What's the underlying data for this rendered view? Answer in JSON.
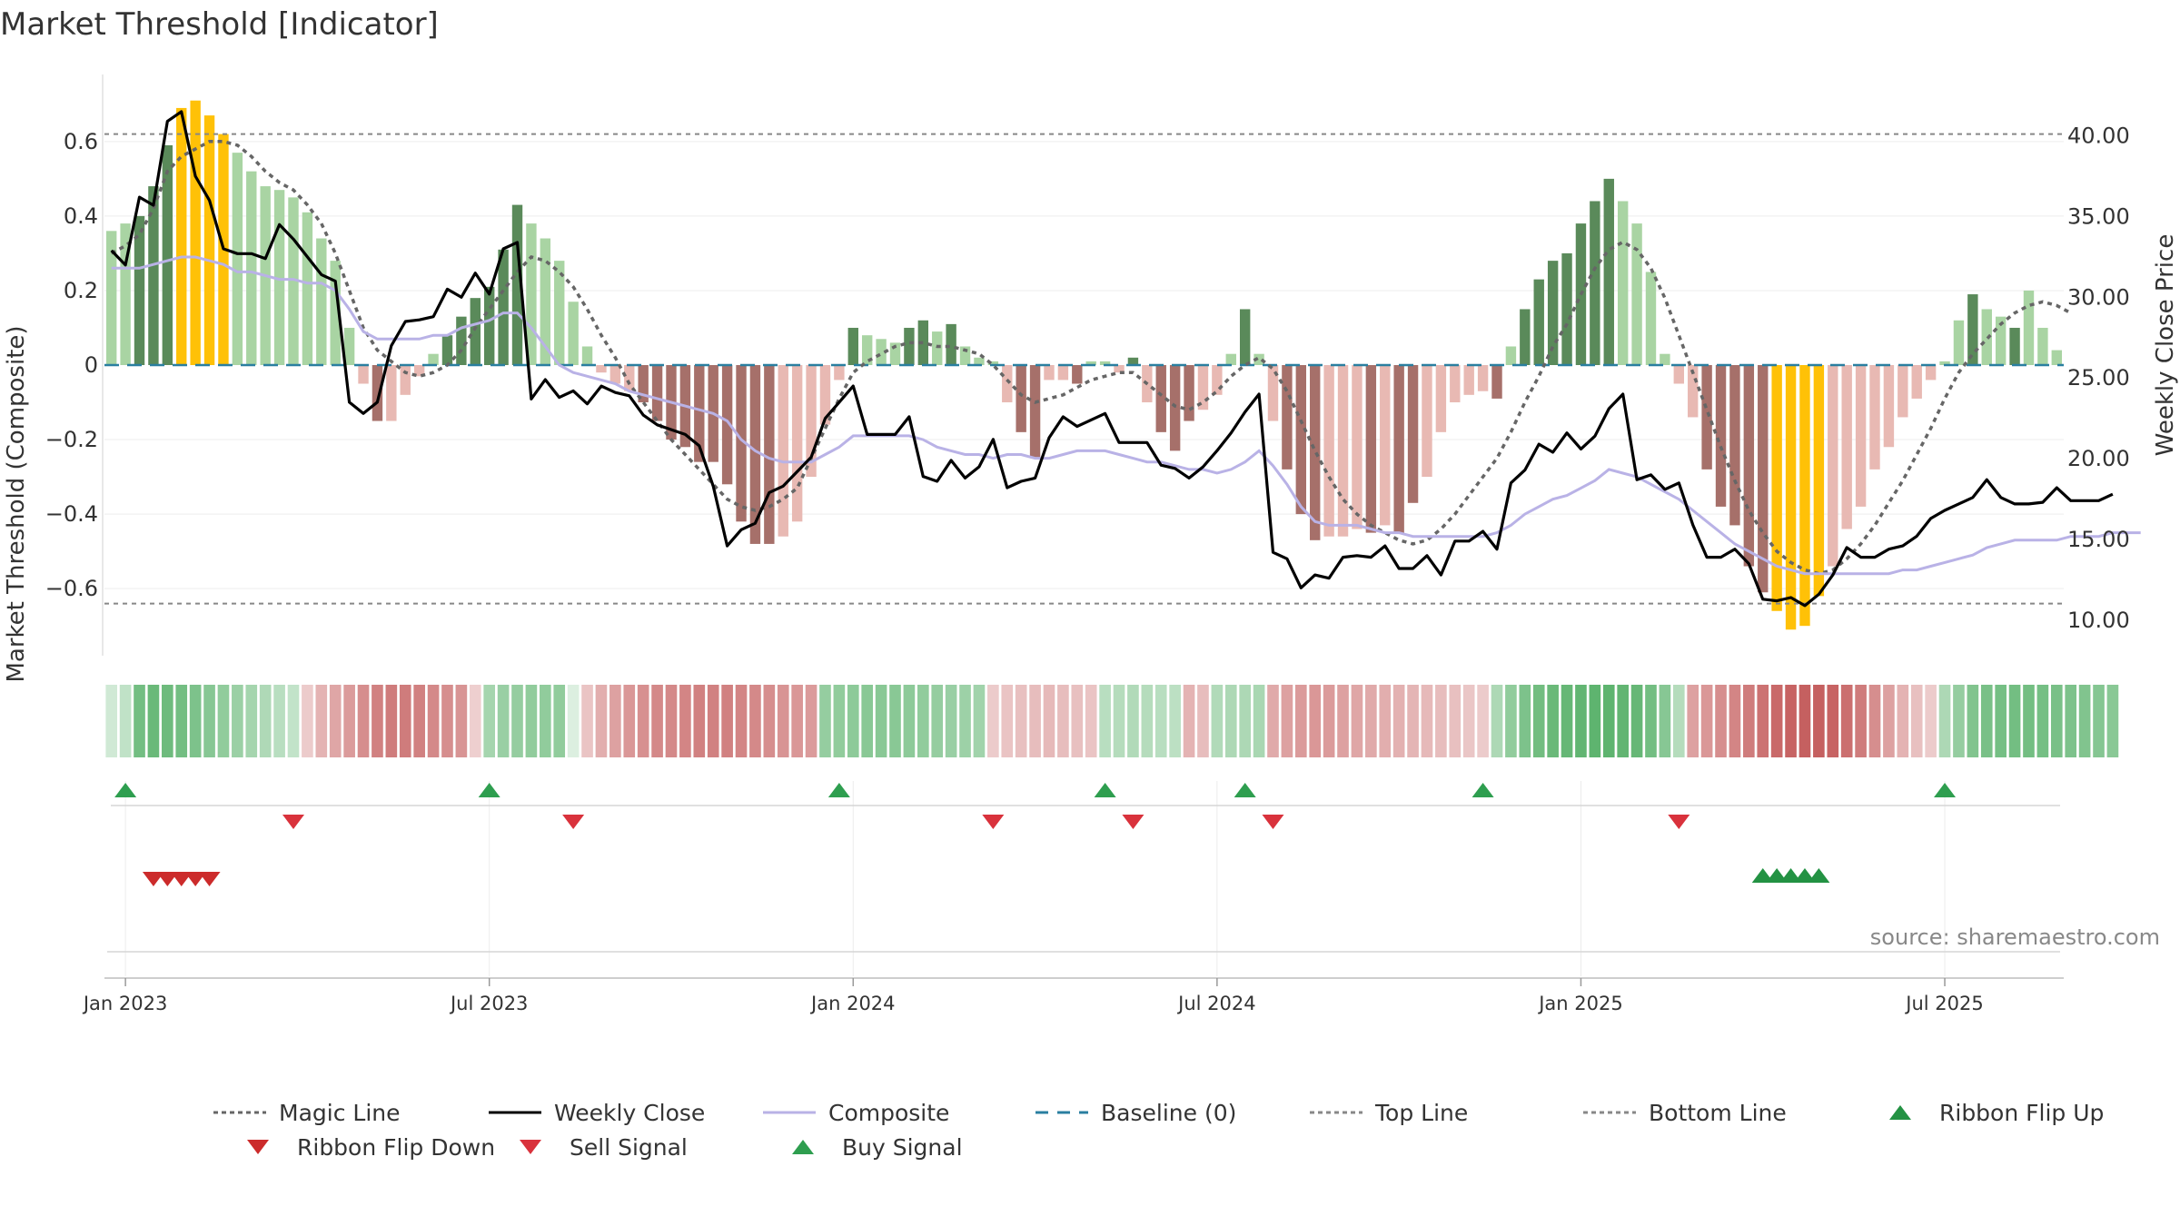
{
  "page": {
    "title": "Market Threshold [Indicator]",
    "source": "source: sharemaestro.com"
  },
  "colors": {
    "bar_pos_strong": "#5a8a5a",
    "bar_pos_weak": "#a9d4a3",
    "bar_neg_strong": "#a6706a",
    "bar_neg_weak": "#e8b9b3",
    "bar_extreme": "#ffc107",
    "weekly_close": "#000000",
    "composite": "#b9b2e6",
    "magic_line": "#666666",
    "baseline": "#2a7fa0",
    "threshold_lines": "#888888",
    "buy": "#2e9e4f",
    "sell": "#d9323c",
    "ribbon_up": "#239243",
    "ribbon_down": "#cc2b2b"
  },
  "chart_data": {
    "type": "bar",
    "xlabel": "",
    "ylabel": "Market Threshold (Composite)",
    "y2label": "Weekly Close Price",
    "ylim": [
      -0.78,
      0.78
    ],
    "y2lim": [
      7.8,
      43.8
    ],
    "yticks": [
      {
        "v": 0.6,
        "t": "0.6"
      },
      {
        "v": 0.4,
        "t": "0.4"
      },
      {
        "v": 0.2,
        "t": "0.2"
      },
      {
        "v": 0,
        "t": "0"
      },
      {
        "v": -0.2,
        "t": "−0.2"
      },
      {
        "v": -0.4,
        "t": "−0.4"
      },
      {
        "v": -0.6,
        "t": "−0.6"
      }
    ],
    "y2ticks": [
      {
        "v": 40,
        "t": "40.00"
      },
      {
        "v": 35,
        "t": "35.00"
      },
      {
        "v": 30,
        "t": "30.00"
      },
      {
        "v": 25,
        "t": "25.00"
      },
      {
        "v": 20,
        "t": "20.00"
      },
      {
        "v": 15,
        "t": "15.00"
      },
      {
        "v": 10,
        "t": "10.00"
      }
    ],
    "xticks": [
      {
        "w": 1,
        "t": "Jan 2023"
      },
      {
        "w": 27,
        "t": "Jul 2023"
      },
      {
        "w": 53,
        "t": "Jan 2024"
      },
      {
        "w": 79,
        "t": "Jul 2024"
      },
      {
        "w": 105,
        "t": "Jan 2025"
      },
      {
        "w": 131,
        "t": "Jul 2025"
      }
    ],
    "top_line": 0.62,
    "bottom_line": -0.64,
    "baseline": 0,
    "composite_bars": [
      0.36,
      0.38,
      0.4,
      0.48,
      0.59,
      0.69,
      0.71,
      0.67,
      0.62,
      0.57,
      0.52,
      0.48,
      0.47,
      0.45,
      0.41,
      0.34,
      0.28,
      0.1,
      -0.05,
      -0.15,
      -0.15,
      -0.08,
      -0.03,
      0.03,
      0.08,
      0.13,
      0.18,
      0.21,
      0.31,
      0.43,
      0.38,
      0.34,
      0.28,
      0.17,
      0.05,
      -0.02,
      -0.05,
      -0.07,
      -0.1,
      -0.15,
      -0.2,
      -0.22,
      -0.26,
      -0.26,
      -0.32,
      -0.42,
      -0.48,
      -0.48,
      -0.46,
      -0.42,
      -0.3,
      -0.16,
      -0.04,
      0.1,
      0.08,
      0.07,
      0.06,
      0.1,
      0.12,
      0.09,
      0.11,
      0.05,
      0.02,
      0.01,
      -0.1,
      -0.18,
      -0.25,
      -0.04,
      -0.04,
      -0.05,
      0.01,
      0.01,
      -0.02,
      0.02,
      -0.1,
      -0.18,
      -0.23,
      -0.15,
      -0.12,
      -0.08,
      0.03,
      0.15,
      0.03,
      -0.15,
      -0.28,
      -0.4,
      -0.47,
      -0.46,
      -0.46,
      -0.44,
      -0.45,
      -0.43,
      -0.45,
      -0.37,
      -0.3,
      -0.18,
      -0.1,
      -0.08,
      -0.07,
      -0.09,
      0.05,
      0.15,
      0.23,
      0.28,
      0.3,
      0.38,
      0.44,
      0.5,
      0.44,
      0.38,
      0.25,
      0.03,
      -0.05,
      -0.14,
      -0.28,
      -0.38,
      -0.43,
      -0.54,
      -0.61,
      -0.66,
      -0.71,
      -0.7,
      -0.62,
      -0.54,
      -0.44,
      -0.38,
      -0.28,
      -0.22,
      -0.14,
      -0.09,
      -0.04,
      0.01,
      0.12,
      0.19,
      0.15,
      0.13,
      0.1,
      0.2,
      0.1,
      0.04
    ],
    "bar_shades": [
      "w",
      "w",
      "s",
      "s",
      "s",
      "y",
      "y",
      "y",
      "y",
      "w",
      "w",
      "w",
      "w",
      "w",
      "w",
      "w",
      "w",
      "w",
      "w",
      "s",
      "w",
      "w",
      "w",
      "w",
      "s",
      "s",
      "s",
      "s",
      "s",
      "s",
      "w",
      "w",
      "w",
      "w",
      "w",
      "w",
      "w",
      "w",
      "s",
      "s",
      "s",
      "s",
      "s",
      "s",
      "s",
      "s",
      "s",
      "s",
      "w",
      "w",
      "w",
      "w",
      "w",
      "s",
      "w",
      "w",
      "w",
      "s",
      "s",
      "w",
      "s",
      "w",
      "w",
      "w",
      "w",
      "s",
      "s",
      "w",
      "w",
      "s",
      "w",
      "w",
      "w",
      "s",
      "w",
      "s",
      "s",
      "s",
      "w",
      "w",
      "w",
      "s",
      "w",
      "w",
      "s",
      "s",
      "s",
      "w",
      "w",
      "w",
      "s",
      "w",
      "s",
      "s",
      "w",
      "w",
      "w",
      "w",
      "w",
      "s",
      "w",
      "s",
      "s",
      "s",
      "s",
      "s",
      "s",
      "s",
      "w",
      "w",
      "w",
      "w",
      "w",
      "w",
      "s",
      "s",
      "s",
      "s",
      "s",
      "y",
      "y",
      "y",
      "y",
      "w",
      "w",
      "w",
      "w",
      "w",
      "w",
      "w",
      "w",
      "w",
      "w",
      "s",
      "w",
      "w",
      "s",
      "w",
      "w"
    ],
    "series": [
      {
        "name": "Weekly Close",
        "values": [
          32.9,
          32.0,
          36.2,
          35.7,
          40.9,
          41.5,
          37.5,
          36.0,
          33.0,
          32.7,
          32.7,
          32.4,
          34.5,
          33.6,
          32.5,
          31.4,
          31.0,
          23.5,
          22.8,
          23.5,
          27.0,
          28.5,
          28.6,
          28.8,
          30.5,
          30.0,
          31.5,
          30.2,
          33.0,
          33.4,
          23.7,
          24.9,
          23.8,
          24.2,
          23.4,
          24.5,
          24.1,
          23.9,
          22.7,
          22.1,
          21.8,
          21.5,
          20.8,
          18.3,
          14.6,
          15.6,
          16.0,
          17.9,
          18.3,
          19.2,
          20.1,
          22.5,
          23.5,
          24.5,
          21.5,
          21.5,
          21.5,
          22.6,
          18.9,
          18.6,
          19.9,
          18.8,
          19.5,
          21.2,
          18.2,
          18.6,
          18.8,
          21.3,
          22.6,
          22.0,
          22.4,
          22.8,
          21.0,
          21.0,
          21.0,
          19.6,
          19.4,
          18.8,
          19.5,
          20.5,
          21.6,
          22.9,
          24.0,
          14.2,
          13.8,
          12.0,
          12.8,
          12.6,
          13.9,
          14.0,
          13.9,
          14.6,
          13.2,
          13.2,
          14.0,
          12.8,
          14.9,
          14.9,
          15.5,
          14.4,
          18.5,
          19.3,
          20.9,
          20.4,
          21.6,
          20.6,
          21.4,
          23.1,
          24.0,
          18.7,
          19.0,
          18.1,
          18.5,
          15.9,
          13.9,
          13.9,
          14.4,
          13.5,
          11.3,
          11.2,
          11.4,
          10.9,
          11.6,
          12.8,
          14.5,
          13.9,
          13.9,
          14.4,
          14.6,
          15.2,
          16.3,
          16.8,
          17.2,
          17.6,
          18.7,
          17.6,
          17.2,
          17.2,
          17.3,
          18.2,
          17.4,
          17.4,
          17.4,
          17.8
        ]
      },
      {
        "name": "Composite",
        "values": [
          0.26,
          0.26,
          0.26,
          0.27,
          0.28,
          0.29,
          0.29,
          0.28,
          0.27,
          0.25,
          0.25,
          0.24,
          0.23,
          0.23,
          0.22,
          0.22,
          0.2,
          0.15,
          0.09,
          0.07,
          0.07,
          0.07,
          0.07,
          0.08,
          0.08,
          0.1,
          0.11,
          0.12,
          0.14,
          0.14,
          0.1,
          0.05,
          0.0,
          -0.02,
          -0.03,
          -0.04,
          -0.05,
          -0.07,
          -0.08,
          -0.09,
          -0.1,
          -0.11,
          -0.12,
          -0.13,
          -0.15,
          -0.2,
          -0.23,
          -0.25,
          -0.26,
          -0.26,
          -0.26,
          -0.24,
          -0.22,
          -0.19,
          -0.19,
          -0.19,
          -0.19,
          -0.19,
          -0.2,
          -0.22,
          -0.23,
          -0.24,
          -0.24,
          -0.25,
          -0.24,
          -0.24,
          -0.25,
          -0.25,
          -0.24,
          -0.23,
          -0.23,
          -0.23,
          -0.24,
          -0.25,
          -0.26,
          -0.26,
          -0.27,
          -0.28,
          -0.28,
          -0.29,
          -0.28,
          -0.26,
          -0.23,
          -0.27,
          -0.32,
          -0.38,
          -0.42,
          -0.43,
          -0.43,
          -0.43,
          -0.44,
          -0.45,
          -0.45,
          -0.46,
          -0.46,
          -0.46,
          -0.46,
          -0.46,
          -0.46,
          -0.45,
          -0.43,
          -0.4,
          -0.38,
          -0.36,
          -0.35,
          -0.33,
          -0.31,
          -0.28,
          -0.29,
          -0.3,
          -0.32,
          -0.34,
          -0.36,
          -0.39,
          -0.42,
          -0.45,
          -0.48,
          -0.5,
          -0.52,
          -0.54,
          -0.55,
          -0.56,
          -0.56,
          -0.56,
          -0.56,
          -0.56,
          -0.56,
          -0.56,
          -0.55,
          -0.55,
          -0.54,
          -0.53,
          -0.52,
          -0.51,
          -0.49,
          -0.48,
          -0.47,
          -0.47,
          -0.47,
          -0.47,
          -0.46,
          -0.46,
          -0.46,
          -0.45,
          -0.45,
          -0.45
        ]
      },
      {
        "name": "Magic Line",
        "values": [
          0.3,
          0.32,
          0.35,
          0.42,
          0.52,
          0.56,
          0.58,
          0.6,
          0.6,
          0.59,
          0.56,
          0.52,
          0.49,
          0.47,
          0.43,
          0.38,
          0.3,
          0.2,
          0.1,
          0.04,
          0.01,
          -0.02,
          -0.03,
          -0.02,
          0.0,
          0.04,
          0.1,
          0.15,
          0.2,
          0.25,
          0.29,
          0.28,
          0.25,
          0.21,
          0.15,
          0.08,
          0.02,
          -0.05,
          -0.1,
          -0.15,
          -0.2,
          -0.24,
          -0.28,
          -0.32,
          -0.36,
          -0.38,
          -0.39,
          -0.38,
          -0.36,
          -0.33,
          -0.25,
          -0.17,
          -0.09,
          -0.02,
          0.01,
          0.03,
          0.05,
          0.06,
          0.06,
          0.05,
          0.05,
          0.04,
          0.03,
          0.0,
          -0.04,
          -0.08,
          -0.1,
          -0.09,
          -0.08,
          -0.06,
          -0.04,
          -0.03,
          -0.02,
          -0.02,
          -0.05,
          -0.08,
          -0.11,
          -0.12,
          -0.1,
          -0.07,
          -0.03,
          0.0,
          0.02,
          -0.01,
          -0.07,
          -0.15,
          -0.23,
          -0.3,
          -0.36,
          -0.4,
          -0.43,
          -0.45,
          -0.47,
          -0.48,
          -0.47,
          -0.44,
          -0.4,
          -0.35,
          -0.3,
          -0.25,
          -0.18,
          -0.1,
          -0.03,
          0.05,
          0.11,
          0.19,
          0.26,
          0.31,
          0.33,
          0.31,
          0.26,
          0.18,
          0.08,
          -0.02,
          -0.12,
          -0.22,
          -0.31,
          -0.39,
          -0.45,
          -0.5,
          -0.53,
          -0.55,
          -0.56,
          -0.55,
          -0.52,
          -0.48,
          -0.43,
          -0.37,
          -0.31,
          -0.24,
          -0.17,
          -0.09,
          -0.02,
          0.03,
          0.07,
          0.11,
          0.14,
          0.16,
          0.17,
          0.16,
          0.14
        ]
      }
    ],
    "ribbon": [
      0.08,
      0.16,
      0.55,
      0.6,
      0.58,
      0.55,
      0.5,
      0.45,
      0.4,
      0.35,
      0.3,
      0.25,
      0.2,
      0.15,
      -0.12,
      -0.25,
      -0.32,
      -0.38,
      -0.45,
      -0.52,
      -0.55,
      -0.55,
      -0.52,
      -0.48,
      -0.45,
      -0.42,
      -0.1,
      0.3,
      0.36,
      0.38,
      0.4,
      0.4,
      0.4,
      0.02,
      -0.16,
      -0.28,
      -0.35,
      -0.4,
      -0.44,
      -0.48,
      -0.48,
      -0.5,
      -0.52,
      -0.52,
      -0.52,
      -0.5,
      -0.48,
      -0.45,
      -0.42,
      -0.4,
      -0.38,
      0.38,
      0.4,
      0.42,
      0.44,
      0.44,
      0.44,
      0.42,
      0.4,
      0.38,
      0.36,
      0.34,
      0.32,
      -0.12,
      -0.16,
      -0.18,
      -0.2,
      -0.22,
      -0.2,
      -0.18,
      -0.16,
      0.2,
      0.22,
      0.24,
      0.22,
      0.2,
      0.18,
      -0.25,
      -0.2,
      0.24,
      0.26,
      0.26,
      0.28,
      -0.3,
      -0.35,
      -0.38,
      -0.4,
      -0.38,
      -0.35,
      -0.32,
      -0.3,
      -0.28,
      -0.26,
      -0.24,
      -0.22,
      -0.2,
      -0.18,
      -0.15,
      -0.12,
      0.26,
      0.4,
      0.5,
      0.56,
      0.6,
      0.62,
      0.64,
      0.66,
      0.66,
      0.64,
      0.62,
      0.55,
      0.45,
      0.22,
      -0.35,
      -0.4,
      -0.45,
      -0.5,
      -0.55,
      -0.6,
      -0.65,
      -0.68,
      -0.7,
      -0.7,
      -0.68,
      -0.62,
      -0.55,
      -0.45,
      -0.35,
      -0.25,
      -0.18,
      -0.12,
      0.26,
      0.38,
      0.48,
      0.52,
      0.54,
      0.55,
      0.55,
      0.54,
      0.52,
      0.5,
      0.48,
      0.46,
      0.44
    ],
    "buy_signals": [
      1,
      27,
      52,
      71,
      81,
      98,
      131
    ],
    "sell_signals": [
      13,
      33,
      63,
      73,
      83,
      112
    ],
    "ribbon_flip_down": [
      3,
      4,
      5,
      6,
      7
    ],
    "ribbon_flip_up": [
      118,
      119,
      120,
      121,
      122
    ],
    "legend": [
      {
        "label": "Magic Line",
        "kind": "dotted",
        "color": "#666666"
      },
      {
        "label": "Weekly Close",
        "kind": "solid",
        "color": "#000000"
      },
      {
        "label": "Composite",
        "kind": "solid",
        "color": "#b9b2e6"
      },
      {
        "label": "Baseline (0)",
        "kind": "dashed",
        "color": "#2a7fa0"
      },
      {
        "label": "Top Line",
        "kind": "dotted",
        "color": "#888888"
      },
      {
        "label": "Bottom Line",
        "kind": "dotted",
        "color": "#888888"
      },
      {
        "label": "Ribbon Flip Up",
        "kind": "tri-up",
        "color": "#239243"
      },
      {
        "label": "Ribbon Flip Down",
        "kind": "tri-down",
        "color": "#cc2b2b"
      },
      {
        "label": "Sell Signal",
        "kind": "tri-down",
        "color": "#d9323c"
      },
      {
        "label": "Buy Signal",
        "kind": "tri-up",
        "color": "#2e9e4f"
      }
    ]
  }
}
